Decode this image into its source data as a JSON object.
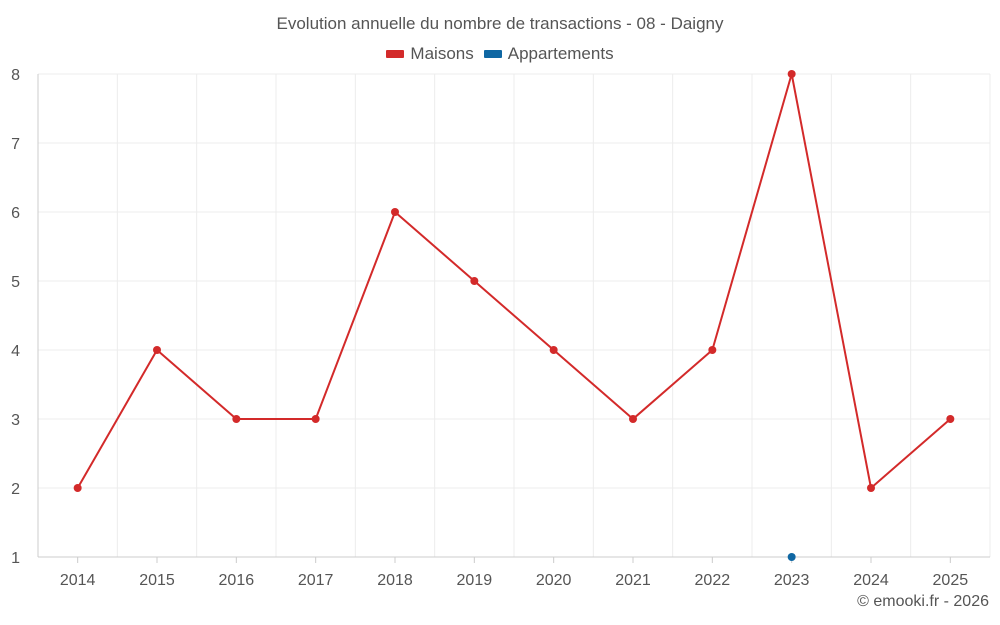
{
  "chart_data": {
    "type": "line",
    "title": "Evolution annuelle du nombre de transactions - 08 - Daigny",
    "x": [
      "2014",
      "2015",
      "2016",
      "2017",
      "2018",
      "2019",
      "2020",
      "2021",
      "2022",
      "2023",
      "2024",
      "2025"
    ],
    "y_ticks": [
      "1",
      "2",
      "3",
      "4",
      "5",
      "6",
      "7",
      "8"
    ],
    "ylim": [
      1,
      8
    ],
    "grid": true,
    "legend_position": "top-center",
    "series": [
      {
        "name": "Maisons",
        "color": "#d32a2a",
        "values": [
          2,
          4,
          3,
          3,
          6,
          5,
          4,
          3,
          4,
          8,
          2,
          3
        ]
      },
      {
        "name": "Appartements",
        "color": "#0f67a3",
        "values": [
          null,
          null,
          null,
          null,
          null,
          null,
          null,
          null,
          null,
          1,
          null,
          null
        ]
      }
    ]
  },
  "credit": "© emooki.fr - 2026"
}
